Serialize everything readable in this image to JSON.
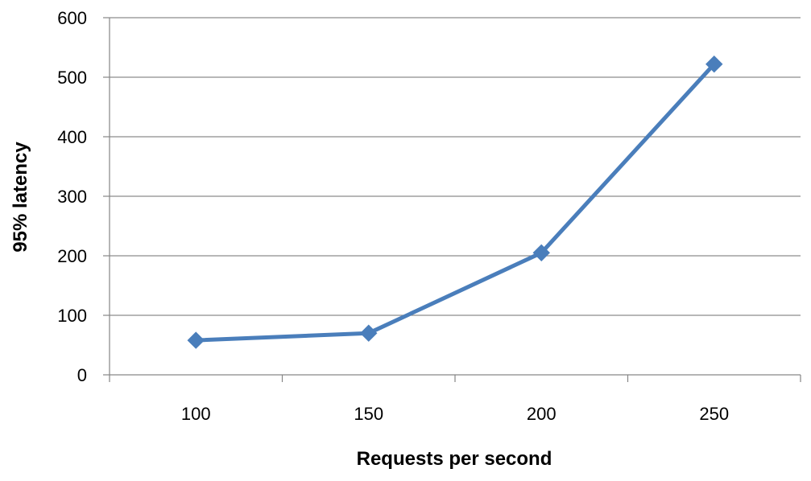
{
  "chart_data": {
    "type": "line",
    "title": "",
    "xlabel": "Requests per second",
    "ylabel": "95% latency",
    "categories": [
      "100",
      "150",
      "200",
      "250"
    ],
    "x": [
      100,
      150,
      200,
      250
    ],
    "series": [
      {
        "values": [
          58,
          70,
          205,
          522
        ]
      }
    ],
    "ylim": [
      0,
      600
    ],
    "yticks": [
      0,
      100,
      200,
      300,
      400,
      500,
      600
    ],
    "ytick_labels": [
      "0",
      "100",
      "200",
      "300",
      "400",
      "500",
      "600"
    ],
    "grid": "horizontal",
    "legend": "none",
    "marker": "diamond",
    "colors": {
      "series": "#4a7ebb",
      "grid": "#8c8c8c",
      "axis": "#868686"
    }
  }
}
